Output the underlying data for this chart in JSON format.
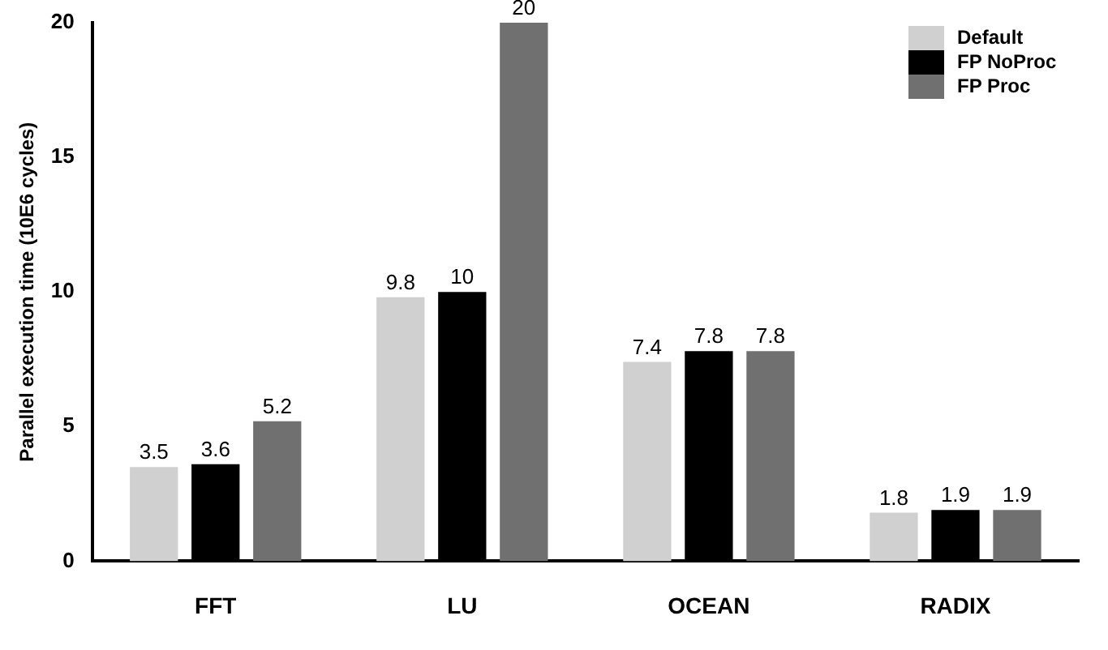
{
  "chart_data": {
    "type": "bar",
    "ylabel": "Parallel execution time (10E6 cycles)",
    "categories": [
      "FFT",
      "LU",
      "OCEAN",
      "RADIX"
    ],
    "series": [
      {
        "name": "Default",
        "color": "#d0d0d0",
        "values": [
          3.5,
          9.8,
          7.4,
          1.8
        ]
      },
      {
        "name": "FP NoProc",
        "color": "#000000",
        "values": [
          3.6,
          10,
          7.8,
          1.9
        ]
      },
      {
        "name": "FP Proc",
        "color": "#707070",
        "values": [
          5.2,
          20,
          7.8,
          1.9
        ]
      }
    ],
    "ylim": [
      0,
      20
    ],
    "yticks": [
      0,
      5,
      10,
      15,
      20
    ],
    "grid": false,
    "legend": "top right",
    "data_labels": true
  }
}
